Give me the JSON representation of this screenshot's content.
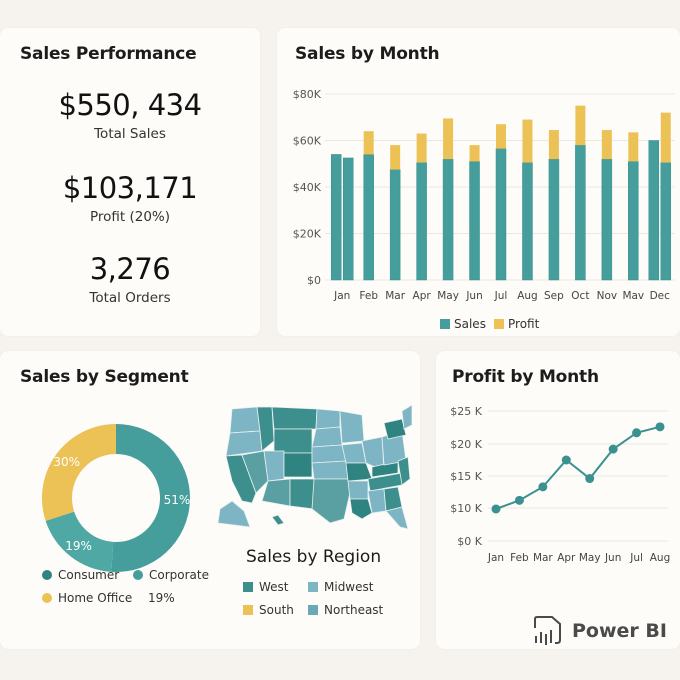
{
  "kpi": {
    "title": "Sales Performance",
    "items": [
      {
        "value": "$550, 434",
        "label": "Total Sales"
      },
      {
        "value": "$103,171",
        "label": "Profit (20%)"
      },
      {
        "value": "3,276",
        "label": "Total Orders"
      }
    ]
  },
  "colors": {
    "teal": "#459e9c",
    "teal_dark": "#2f8481",
    "gold": "#ecc257",
    "teal_light": "#7eb5c4",
    "grid": "#ebe8e2"
  },
  "chart_data": [
    {
      "type": "bar",
      "title": "Sales by Month",
      "categories": [
        "Jan",
        "Feb",
        "Mar",
        "Apr",
        "May",
        "Jun",
        "Jul",
        "Aug",
        "Sep",
        "Oct",
        "Nov",
        "Mav",
        "Dec"
      ],
      "bars": [
        {
          "cat": 0,
          "sales": 54000,
          "profit": 0
        },
        {
          "cat": 0,
          "sales": 52500,
          "profit": 0
        },
        {
          "cat": 1,
          "sales": 54000,
          "profit": 10000
        },
        {
          "cat": 2,
          "sales": 47500,
          "profit": 10500
        },
        {
          "cat": 3,
          "sales": 50500,
          "profit": 12500
        },
        {
          "cat": 4,
          "sales": 52000,
          "profit": 17500
        },
        {
          "cat": 5,
          "sales": 51000,
          "profit": 7000
        },
        {
          "cat": 6,
          "sales": 56500,
          "profit": 10500
        },
        {
          "cat": 7,
          "sales": 50500,
          "profit": 18500
        },
        {
          "cat": 8,
          "sales": 52000,
          "profit": 12500
        },
        {
          "cat": 9,
          "sales": 58000,
          "profit": 17000
        },
        {
          "cat": 10,
          "sales": 52000,
          "profit": 12500
        },
        {
          "cat": 11,
          "sales": 51000,
          "profit": 12500
        },
        {
          "cat": 12,
          "sales": 60000,
          "profit": 0
        },
        {
          "cat": 12,
          "sales": 50500,
          "profit": 21500
        }
      ],
      "series": [
        {
          "name": "Sales",
          "color": "#459e9c"
        },
        {
          "name": "Profit",
          "color": "#ecc257"
        }
      ],
      "yticks": [
        "$0",
        "$20K",
        "$40K",
        "$60K",
        "$80K"
      ],
      "ylim": [
        0,
        80000
      ],
      "grid": true,
      "legend": "bottom-center",
      "xlabel": "",
      "ylabel": ""
    },
    {
      "type": "pie",
      "title": "Sales by Segment",
      "slices": [
        {
          "name": "Consumer",
          "value": 51,
          "label": "51%",
          "color": "#459e9c"
        },
        {
          "name": "Corporate",
          "value": 19,
          "label": "19%",
          "color": "#4fa8a3"
        },
        {
          "name": "Home Office",
          "value": 30,
          "label": "30%",
          "color": "#ecc257"
        }
      ],
      "donut": true,
      "legend": [
        {
          "name": "Consumer",
          "color": "#2f8481"
        },
        {
          "name": "Corporate",
          "color": "#459e9c"
        },
        {
          "name": "Home Office",
          "color": "#ecc257"
        },
        {
          "name": "19%",
          "color": null
        }
      ]
    },
    {
      "type": "line",
      "title": "Profit by Month",
      "x": [
        "Jan",
        "Feb",
        "Mar",
        "Apr",
        "May",
        "Jun",
        "Jul",
        "Aug"
      ],
      "values": [
        9700,
        11200,
        13300,
        17500,
        14600,
        19200,
        21700,
        22600
      ],
      "yticks": [
        "$0 K",
        "$10 K",
        "$15 K",
        "$20 K",
        "$25 K"
      ],
      "ytick_values": [
        0,
        10000,
        15000,
        20000,
        25000
      ],
      "grid": true,
      "color": "#3a918f"
    }
  ],
  "region": {
    "title": "Sales by Region",
    "legend": [
      {
        "name": "West",
        "color": "#3d8f8e"
      },
      {
        "name": "Midwest",
        "color": "#7eb5c4"
      },
      {
        "name": "South",
        "color": "#ecc257"
      },
      {
        "name": "Northeast",
        "color": "#6aa8b6"
      }
    ]
  },
  "brand": {
    "name": "Power BI"
  }
}
